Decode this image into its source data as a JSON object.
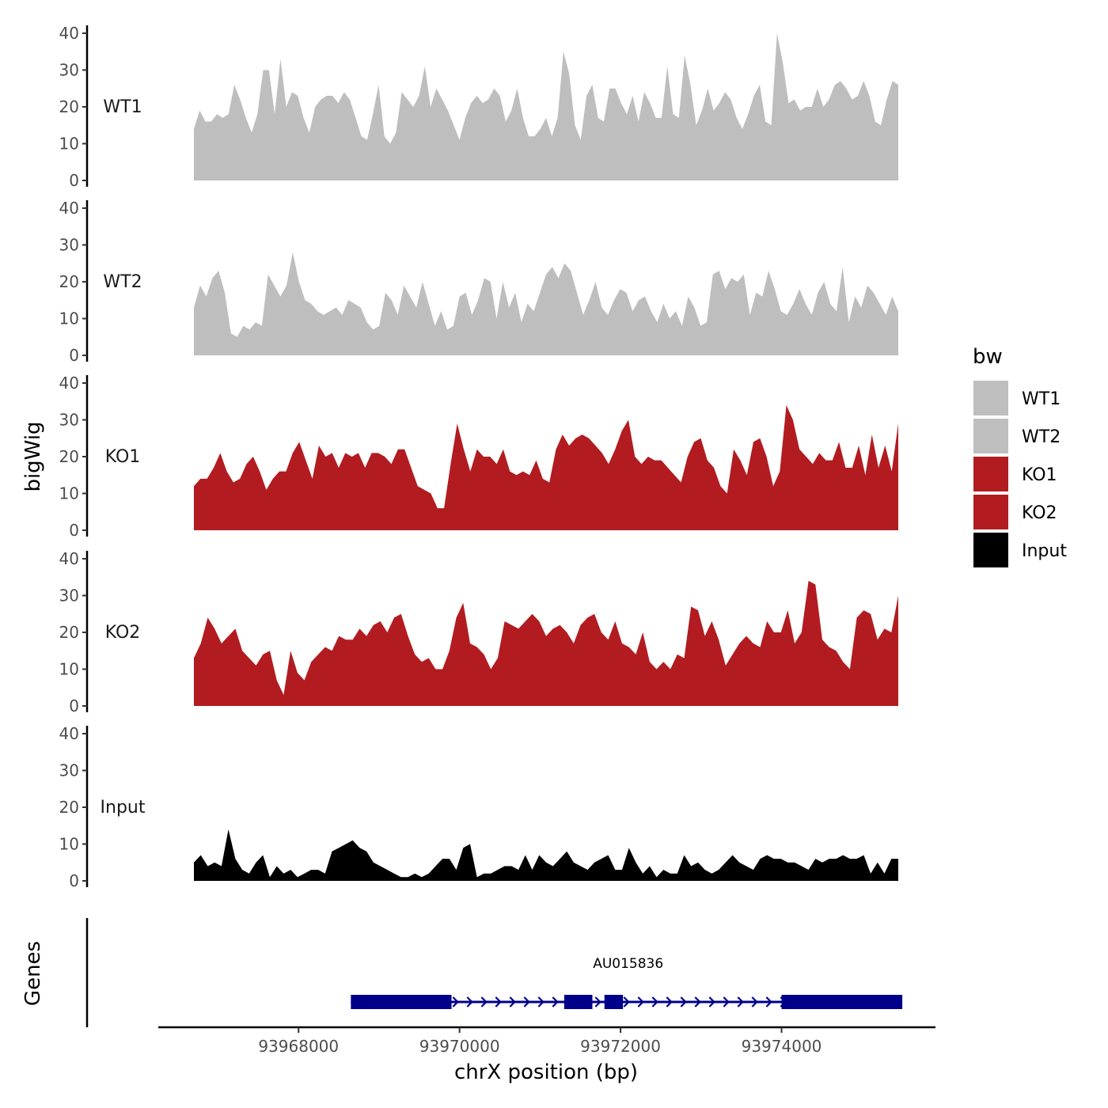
{
  "chart_data": {
    "type": "area",
    "title": "",
    "xlabel": "chrX position (bp)",
    "ylabel": "bigWig",
    "gene_panel_label": "Genes",
    "legend_title": "bw",
    "xlim": [
      93966300,
      93976050
    ],
    "x_ticks": [
      93968000,
      93970000,
      93972000,
      93974000
    ],
    "x_tick_labels": [
      "93968000",
      "93970000",
      "93972000",
      "93974000"
    ],
    "ylim": [
      0,
      42
    ],
    "y_ticks": [
      0,
      10,
      20,
      30,
      40
    ],
    "y_tick_labels": [
      "0",
      "10",
      "20",
      "30",
      "40"
    ],
    "series": [
      {
        "name": "WT1",
        "color": "#bebebe",
        "x_start": 93966700,
        "x_end": 93975450,
        "values": [
          14,
          19,
          16,
          16,
          18,
          17,
          18,
          26,
          22,
          17,
          13,
          18,
          30,
          30,
          18,
          33,
          20,
          24,
          23,
          17,
          13,
          20,
          22,
          23,
          23,
          21,
          24,
          22,
          17,
          12,
          11,
          18,
          26,
          12,
          10,
          13,
          24,
          22,
          20,
          23,
          31,
          20,
          25,
          22,
          19,
          15,
          11,
          17,
          21,
          23,
          21,
          22,
          25,
          23,
          16,
          19,
          25,
          17,
          12,
          12,
          14,
          17,
          12,
          17,
          35,
          29,
          15,
          11,
          23,
          26,
          17,
          16,
          25,
          25,
          21,
          18,
          23,
          16,
          24,
          21,
          17,
          17,
          31,
          18,
          17,
          34,
          26,
          15,
          19,
          25,
          19,
          21,
          24,
          22,
          17,
          14,
          18,
          23,
          26,
          16,
          15,
          40,
          32,
          21,
          22,
          19,
          20,
          20,
          25,
          20,
          22,
          26,
          27,
          25,
          22,
          23,
          27,
          23,
          16,
          15,
          22,
          27,
          26
        ]
      },
      {
        "name": "WT2",
        "color": "#bebebe",
        "x_start": 93966700,
        "x_end": 93975450,
        "values": [
          13,
          19,
          16,
          21,
          23,
          17,
          6,
          5,
          8,
          7,
          9,
          8,
          22,
          19,
          16,
          19,
          28,
          20,
          15,
          14,
          12,
          11,
          12,
          13,
          11,
          15,
          14,
          13,
          9,
          7,
          8,
          17,
          15,
          11,
          19,
          16,
          13,
          20,
          14,
          8,
          12,
          7,
          8,
          16,
          17,
          11,
          15,
          21,
          20,
          10,
          20,
          13,
          17,
          9,
          14,
          12,
          17,
          22,
          24,
          21,
          25,
          23,
          17,
          11,
          15,
          20,
          13,
          11,
          15,
          18,
          17,
          12,
          15,
          16,
          12,
          9,
          14,
          10,
          12,
          8,
          16,
          13,
          8,
          9,
          22,
          23,
          18,
          21,
          20,
          22,
          11,
          17,
          16,
          23,
          18,
          12,
          11,
          14,
          18,
          14,
          11,
          17,
          20,
          14,
          12,
          24,
          9,
          16,
          13,
          19,
          17,
          14,
          11,
          16,
          12
        ]
      },
      {
        "name": "KO1",
        "color": "#b21c20",
        "x_start": 93966700,
        "x_end": 93975450,
        "values": [
          12,
          14,
          14,
          17,
          21,
          16,
          13,
          14,
          18,
          20,
          16,
          11,
          14,
          16,
          16,
          21,
          24,
          19,
          14,
          23,
          20,
          21,
          17,
          21,
          20,
          21,
          17,
          21,
          21,
          20,
          18,
          22,
          22,
          17,
          12,
          11,
          10,
          6,
          6,
          18,
          29,
          22,
          16,
          22,
          20,
          20,
          18,
          22,
          16,
          15,
          16,
          15,
          19,
          14,
          13,
          22,
          26,
          23,
          25,
          26,
          25,
          23,
          21,
          18,
          22,
          27,
          30,
          20,
          18,
          20,
          19,
          19,
          17,
          15,
          13,
          20,
          24,
          25,
          19,
          17,
          12,
          10,
          22,
          19,
          15,
          24,
          25,
          20,
          12,
          16,
          34,
          30,
          22,
          20,
          18,
          21,
          19,
          19,
          24,
          17,
          17,
          23,
          15,
          26,
          17,
          23,
          16,
          29
        ]
      },
      {
        "name": "KO2",
        "color": "#b21c20",
        "x_start": 93966700,
        "x_end": 93975450,
        "values": [
          13,
          17,
          24,
          21,
          17,
          19,
          21,
          15,
          13,
          11,
          14,
          15,
          7,
          3,
          15,
          9,
          7,
          12,
          14,
          16,
          15,
          19,
          18,
          18,
          21,
          19,
          22,
          23,
          20,
          24,
          25,
          19,
          14,
          12,
          13,
          10,
          10,
          15,
          24,
          28,
          17,
          16,
          14,
          10,
          13,
          23,
          22,
          21,
          23,
          25,
          23,
          19,
          21,
          22,
          20,
          17,
          22,
          24,
          25,
          20,
          18,
          23,
          17,
          16,
          14,
          20,
          12,
          10,
          12,
          10,
          14,
          13,
          27,
          26,
          19,
          23,
          18,
          11,
          14,
          17,
          19,
          17,
          16,
          23,
          20,
          20,
          26,
          17,
          20,
          34,
          33,
          18,
          16,
          15,
          12,
          10,
          24,
          26,
          25,
          18,
          21,
          20,
          30
        ]
      },
      {
        "name": "Input",
        "color": "#000000",
        "x_start": 93966700,
        "x_end": 93975450,
        "values": [
          5,
          7,
          4,
          5,
          4,
          14,
          6,
          3,
          2,
          5,
          7,
          1,
          4,
          2,
          3,
          1,
          2,
          3,
          3,
          2,
          8,
          9,
          10,
          11,
          9,
          8,
          5,
          4,
          3,
          2,
          1,
          1,
          2,
          1,
          2,
          4,
          6,
          6,
          3,
          9,
          10,
          1,
          2,
          2,
          3,
          4,
          4,
          3,
          7,
          3,
          7,
          5,
          4,
          6,
          8,
          5,
          4,
          3,
          5,
          6,
          7,
          3,
          3,
          9,
          5,
          2,
          4,
          1,
          3,
          2,
          2,
          7,
          4,
          5,
          3,
          2,
          3,
          5,
          7,
          5,
          4,
          3,
          6,
          7,
          6,
          6,
          5,
          5,
          4,
          3,
          6,
          5,
          6,
          6,
          7,
          6,
          6,
          7,
          2,
          5,
          2,
          6,
          6
        ]
      }
    ],
    "gene": {
      "name": "AU015836",
      "start": 93968650,
      "end": 93975500,
      "strand": "+",
      "color": "#00008b",
      "exons": [
        [
          93968650,
          93969900
        ],
        [
          93971300,
          93971650
        ],
        [
          93971800,
          93972030
        ],
        [
          93974000,
          93975500
        ]
      ]
    }
  }
}
